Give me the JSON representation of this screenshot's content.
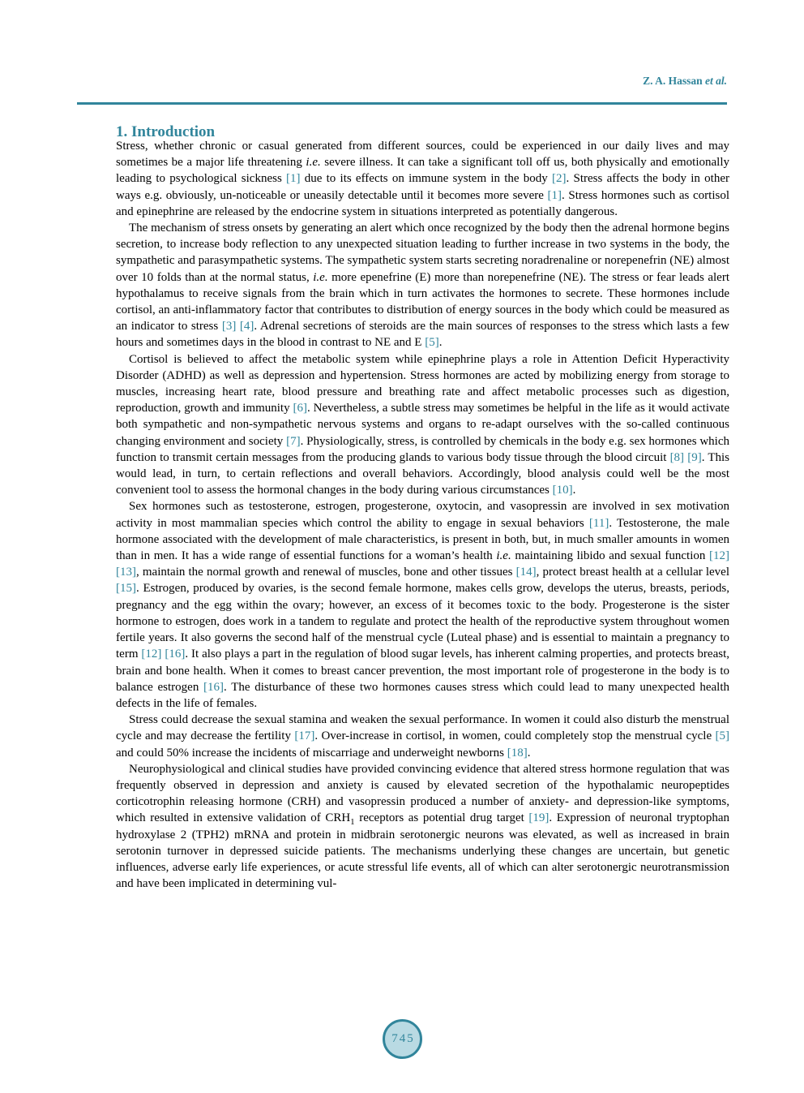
{
  "colors": {
    "accent": "#31859b",
    "circle_fill": "#b9dae3"
  },
  "header": {
    "author": "Z. A. Hassan ",
    "etal": "et al."
  },
  "section_title": "1. Introduction",
  "page_number": "745",
  "paragraphs": [
    {
      "indent": false,
      "segments": [
        {
          "type": "text",
          "text": "Stress, whether chronic or casual generated from different sources, could be experienced in our daily lives and may sometimes be a major life threatening "
        },
        {
          "type": "italic",
          "text": "i.e."
        },
        {
          "type": "text",
          "text": " severe illness. It can take a significant toll off us, both physically and emotionally leading to psychological sickness "
        },
        {
          "type": "cite",
          "text": "[1]"
        },
        {
          "type": "text",
          "text": " due to its effects on immune system in the body "
        },
        {
          "type": "cite",
          "text": "[2]"
        },
        {
          "type": "text",
          "text": ". Stress affects the body in other ways e.g. obviously, un-noticeable or uneasily detectable until it becomes more severe "
        },
        {
          "type": "cite",
          "text": "[1]"
        },
        {
          "type": "text",
          "text": ". Stress hormones such as cortisol and epinephrine are released by the endocrine system in situations interpreted as potentially dangerous."
        }
      ]
    },
    {
      "indent": true,
      "segments": [
        {
          "type": "text",
          "text": "The mechanism of stress onsets by generating an alert which once recognized by the body then the adrenal hormone begins secretion, to increase body reflection to any unexpected situation leading to further increase in two systems in the body, the sympathetic and parasympathetic systems. The sympathetic system starts secreting noradrenaline or norepenefrin (NE) almost over 10 folds than at the normal status, "
        },
        {
          "type": "italic",
          "text": "i.e."
        },
        {
          "type": "text",
          "text": " more epenefrine (E) more than norepenefrine (NE). The stress or fear leads alert hypothalamus to receive signals from the brain which in turn activates the hormones to secrete. These hormones include cortisol, an anti-inflammatory factor that contributes to distribution of energy sources in the body which could be measured as an indicator to stress "
        },
        {
          "type": "cite",
          "text": "[3]"
        },
        {
          "type": "text",
          "text": " "
        },
        {
          "type": "cite",
          "text": "[4]"
        },
        {
          "type": "text",
          "text": ". Adrenal secretions of steroids are the main sources of responses to the stress which lasts a few hours and sometimes days in the blood in contrast to NE and E "
        },
        {
          "type": "cite",
          "text": "[5]"
        },
        {
          "type": "text",
          "text": "."
        }
      ]
    },
    {
      "indent": true,
      "segments": [
        {
          "type": "text",
          "text": "Cortisol is believed to affect the metabolic system while epinephrine plays a role in Attention Deficit Hyperactivity Disorder (ADHD) as well as depression and hypertension. Stress hormones are acted by mobilizing energy from storage to muscles, increasing heart rate, blood pressure and breathing rate and affect metabolic processes such as digestion, reproduction, growth and immunity "
        },
        {
          "type": "cite",
          "text": "[6]"
        },
        {
          "type": "text",
          "text": ". Nevertheless, a subtle stress may sometimes be helpful in the life as it would activate both sympathetic and non-sympathetic nervous systems and organs to re-adapt ourselves with the so-called continuous changing environment and society "
        },
        {
          "type": "cite",
          "text": "[7]"
        },
        {
          "type": "text",
          "text": ". Physiologically, stress, is controlled by chemicals in the body e.g. sex hormones which function to transmit certain messages from the producing glands to various body tissue through the blood circuit "
        },
        {
          "type": "cite",
          "text": "[8]"
        },
        {
          "type": "text",
          "text": " "
        },
        {
          "type": "cite",
          "text": "[9]"
        },
        {
          "type": "text",
          "text": ". This would lead, in turn, to certain reflections and overall behaviors. Accordingly, blood analysis could well be the most convenient tool to assess the hormonal changes in the body during various circumstances "
        },
        {
          "type": "cite",
          "text": "[10]"
        },
        {
          "type": "text",
          "text": "."
        }
      ]
    },
    {
      "indent": true,
      "segments": [
        {
          "type": "text",
          "text": "Sex hormones such as testosterone, estrogen, progesterone, oxytocin, and vasopressin are involved in sex motivation activity in most mammalian species which control the ability to engage in sexual behaviors "
        },
        {
          "type": "cite",
          "text": "[11]"
        },
        {
          "type": "text",
          "text": ". Testosterone, the male hormone associated with the development of male characteristics, is present in both, but, in much smaller amounts in women than in men. It has a wide range of essential functions for a woman’s health "
        },
        {
          "type": "italic",
          "text": "i.e."
        },
        {
          "type": "text",
          "text": " maintaining libido and sexual function "
        },
        {
          "type": "cite",
          "text": "[12]"
        },
        {
          "type": "text",
          "text": " "
        },
        {
          "type": "cite",
          "text": "[13]"
        },
        {
          "type": "text",
          "text": ", maintain the normal growth and renewal of muscles, bone and other tissues "
        },
        {
          "type": "cite",
          "text": "[14]"
        },
        {
          "type": "text",
          "text": ", protect breast health at a cellular level "
        },
        {
          "type": "cite",
          "text": "[15]"
        },
        {
          "type": "text",
          "text": ". Estrogen, produced by ovaries, is the second female hormone, makes cells grow, develops the uterus, breasts, periods, pregnancy and the egg within the ovary; however, an excess of it becomes toxic to the body. Progesterone is the sister hormone to estrogen, does work in a tandem to regulate and protect the health of the reproductive system throughout women fertile years. It also governs the second half of the menstrual cycle (Luteal phase) and is essential to maintain a pregnancy to term "
        },
        {
          "type": "cite",
          "text": "[12]"
        },
        {
          "type": "text",
          "text": " "
        },
        {
          "type": "cite",
          "text": "[16]"
        },
        {
          "type": "text",
          "text": ". It also plays a part in the regulation of blood sugar levels, has inherent calming properties, and protects breast, brain and bone health. When it comes to breast cancer prevention, the most important role of progesterone in the body is to balance estrogen "
        },
        {
          "type": "cite",
          "text": "[16]"
        },
        {
          "type": "text",
          "text": ". The disturbance of these two hormones causes stress which could lead to many unexpected health defects in the life of females."
        }
      ]
    },
    {
      "indent": true,
      "segments": [
        {
          "type": "text",
          "text": "Stress could decrease the sexual stamina and weaken the sexual performance. In women it could also disturb the menstrual cycle and may decrease the fertility "
        },
        {
          "type": "cite",
          "text": "[17]"
        },
        {
          "type": "text",
          "text": ". Over-increase in cortisol, in women, could completely stop the menstrual cycle "
        },
        {
          "type": "cite",
          "text": "[5]"
        },
        {
          "type": "text",
          "text": " and could 50% increase the incidents of miscarriage and underweight newborns "
        },
        {
          "type": "cite",
          "text": "[18]"
        },
        {
          "type": "text",
          "text": "."
        }
      ]
    },
    {
      "indent": true,
      "segments": [
        {
          "type": "text",
          "text": "Neurophysiological and clinical studies have provided convincing evidence that altered stress hormone regulation that was frequently observed in depression and anxiety is caused by elevated secretion of the hypothalamic neuropeptides corticotrophin releasing hormone (CRH) and vasopressin produced a number of anxiety- and depression-like symptoms, which resulted in extensive validation of CRH"
        },
        {
          "type": "sub",
          "text": "1"
        },
        {
          "type": "text",
          "text": " receptors as potential drug target "
        },
        {
          "type": "cite",
          "text": "[19]"
        },
        {
          "type": "text",
          "text": ". Expression of neuronal tryptophan hydroxylase 2 (TPH2) mRNA and protein in midbrain serotonergic neurons was elevated, as well as increased in brain serotonin turnover in depressed suicide patients. The mechanisms underlying these changes are uncertain, but genetic influences, adverse early life experiences, or acute stressful life events, all of which can alter serotonergic neurotransmission and have been implicated in determining vul-"
        }
      ]
    }
  ]
}
